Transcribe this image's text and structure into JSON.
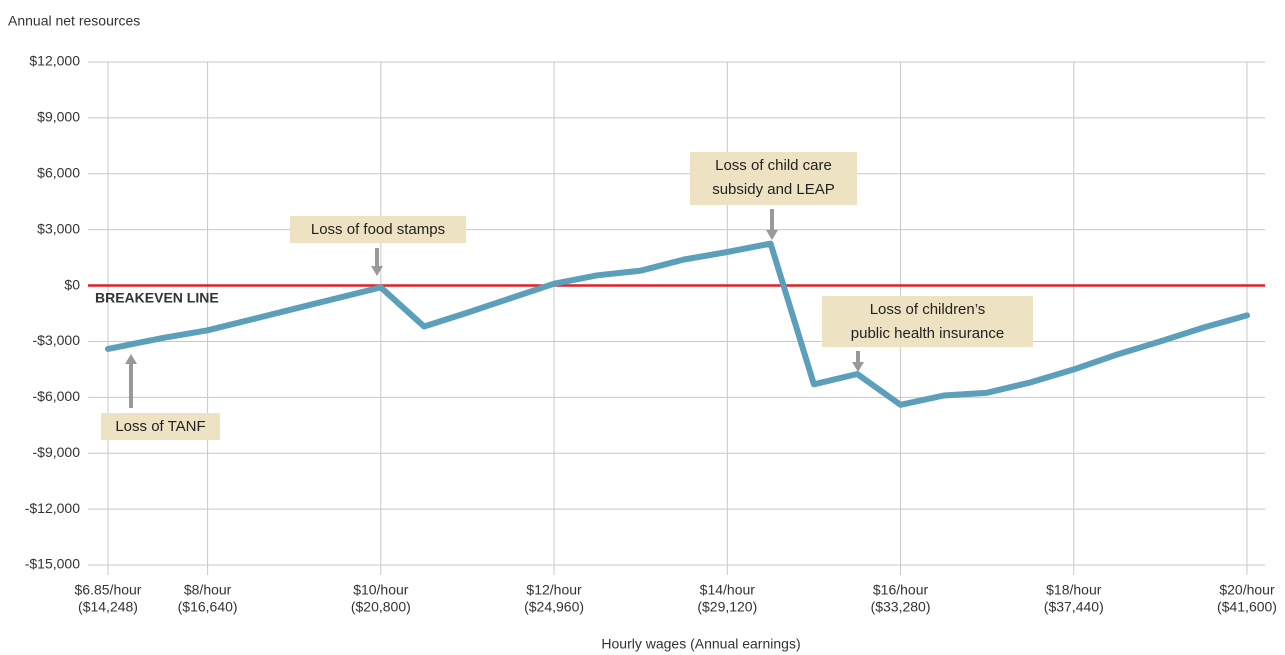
{
  "chart_data": {
    "type": "line",
    "y_label": "Annual net resources",
    "x_label": "Hourly wages (Annual earnings)",
    "x": [
      6.85,
      7.5,
      8,
      9,
      10,
      10.5,
      11,
      12,
      12.5,
      13,
      13.5,
      14,
      14.5,
      15,
      15.5,
      16,
      16.5,
      17,
      17.5,
      18,
      18.5,
      19,
      19.5,
      20
    ],
    "series": [
      {
        "name": "Annual net resources",
        "color": "#5b9fba",
        "values": [
          -3400,
          -2800,
          -2400,
          -1250,
          -100,
          -2200,
          -1450,
          100,
          550,
          800,
          1400,
          1800,
          2250,
          -5300,
          -4750,
          -6400,
          -5900,
          -5750,
          -5200,
          -4500,
          -3700,
          -3000,
          -2250,
          -1600
        ]
      }
    ],
    "xlim": [
      6.85,
      20
    ],
    "ylim": [
      -15000,
      12000
    ],
    "xticks": [
      {
        "value": 6.85,
        "label": "$6.85/hour"
      },
      {
        "value": 8,
        "label": "$8/hour"
      },
      {
        "value": 10,
        "label": "$10/hour"
      },
      {
        "value": 12,
        "label": "$12/hour"
      },
      {
        "value": 14,
        "label": "$14/hour"
      },
      {
        "value": 16,
        "label": "$16/hour"
      },
      {
        "value": 18,
        "label": "$18/hour"
      },
      {
        "value": 20,
        "label": "$20/hour"
      }
    ],
    "xtick_earnings": [
      "($14,248)",
      "($16,640)",
      "($20,800)",
      "($24,960)",
      "($29,120)",
      "($33,280)",
      "($37,440)",
      "($41,600)"
    ],
    "yticks": [
      {
        "value": -15000,
        "label": "-$15,000"
      },
      {
        "value": -12000,
        "label": "-$12,000"
      },
      {
        "value": -9000,
        "label": "-$9,000"
      },
      {
        "value": -6000,
        "label": "-$6,000"
      },
      {
        "value": -3000,
        "label": "-$3,000"
      },
      {
        "value": 0,
        "label": "$0"
      },
      {
        "value": 3000,
        "label": "$3,000"
      },
      {
        "value": 6000,
        "label": "$6,000"
      },
      {
        "value": 9000,
        "label": "$9,000"
      },
      {
        "value": 12000,
        "label": "$12,000"
      }
    ],
    "grid": true,
    "breakeven": {
      "label": "BREAKEVEN LINE",
      "value": 0,
      "color": "#e0202a"
    },
    "annotations": [
      {
        "lines": [
          "Loss of TANF"
        ]
      },
      {
        "lines": [
          "Loss of food stamps"
        ]
      },
      {
        "lines": [
          "Loss of child care",
          "subsidy and LEAP"
        ]
      },
      {
        "lines": [
          "Loss of children’s",
          "public health insurance"
        ]
      }
    ]
  }
}
